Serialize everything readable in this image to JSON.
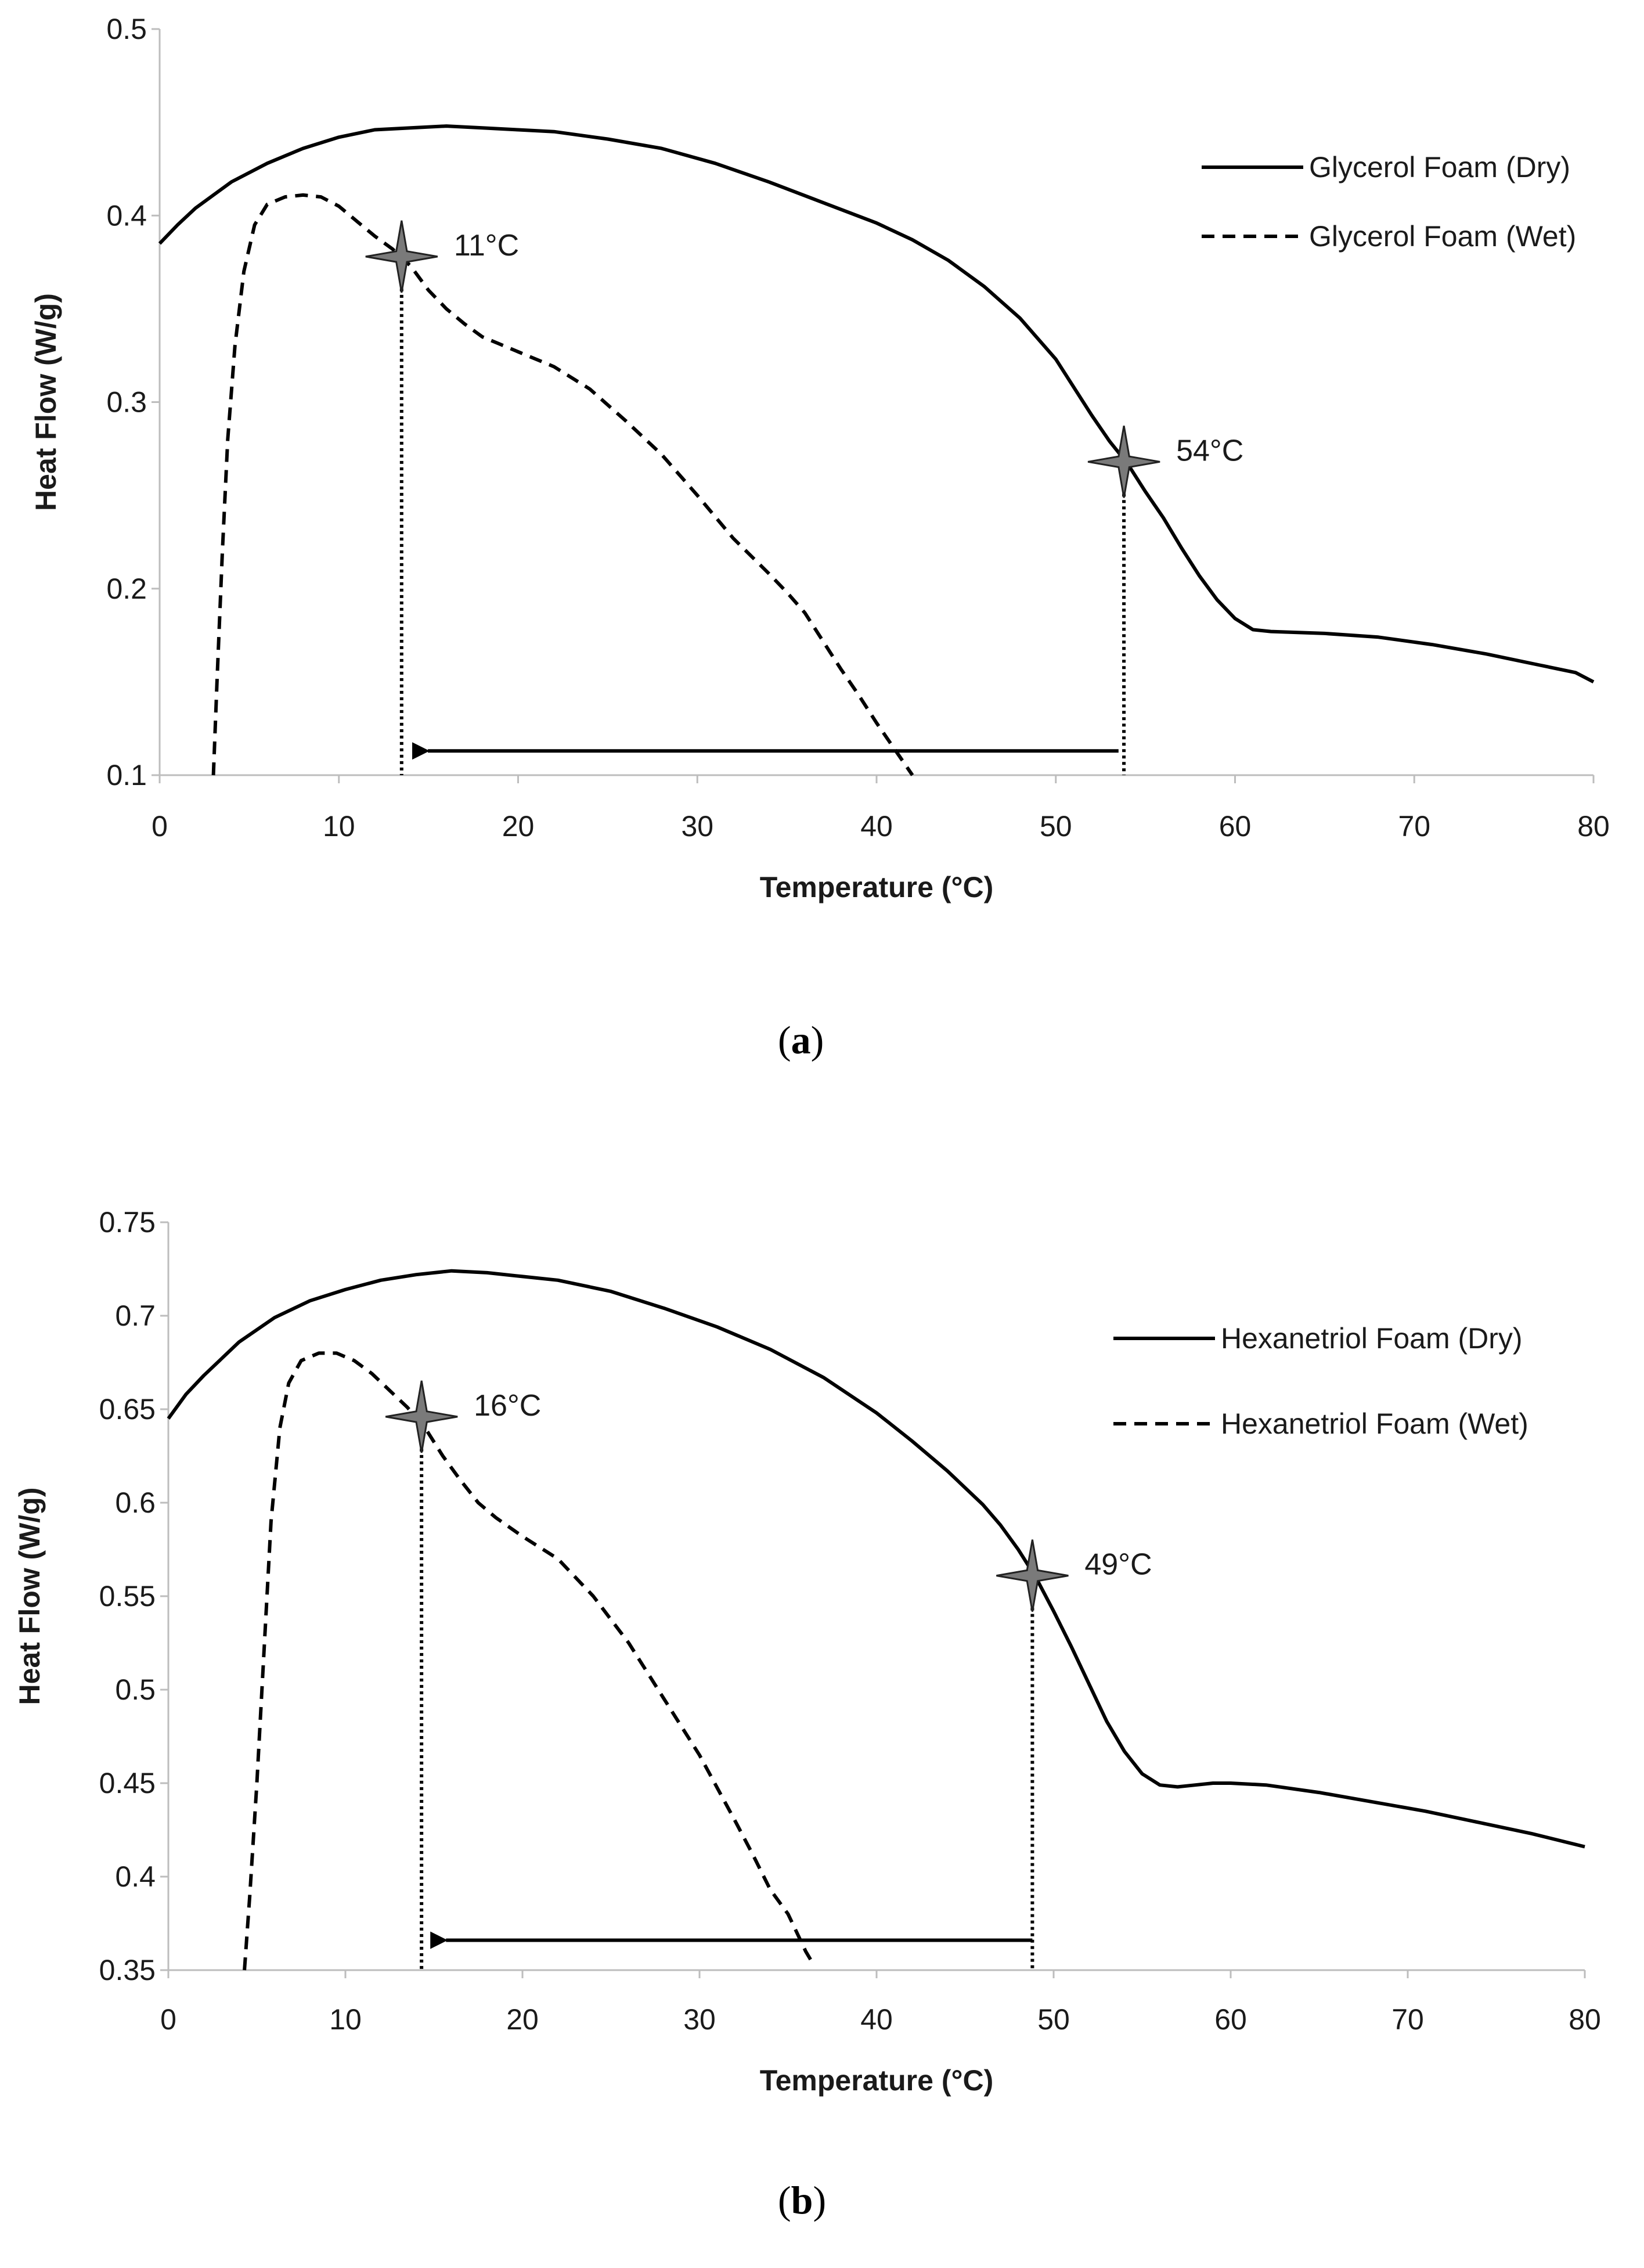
{
  "chart_data": [
    {
      "type": "line",
      "panel_label": "a",
      "xlabel": "Temperature (°C)",
      "ylabel": "Heat Flow (W/g)",
      "xlim": [
        0,
        80
      ],
      "ylim": [
        0.1,
        0.5
      ],
      "xticks": [
        0,
        10,
        20,
        30,
        40,
        50,
        60,
        70,
        80
      ],
      "yticks": [
        0.1,
        0.2,
        0.3,
        0.4,
        0.5
      ],
      "ytick_labels": [
        "0.1",
        "0.2",
        "0.3",
        "0.4",
        "0.5"
      ],
      "legend_position": "top-right",
      "series": [
        {
          "name": "Glycerol Foam (Dry)",
          "style": "solid",
          "x": [
            0,
            1,
            2,
            4,
            6,
            8,
            10,
            12,
            14,
            16,
            18,
            20,
            22,
            25,
            28,
            31,
            34,
            37,
            40,
            42,
            44,
            46,
            48,
            50,
            51,
            52,
            53,
            54,
            55,
            56,
            57,
            58,
            59,
            60,
            61,
            62,
            65,
            68,
            71,
            74,
            77,
            79,
            80
          ],
          "y": [
            0.385,
            0.395,
            0.404,
            0.418,
            0.428,
            0.436,
            0.442,
            0.446,
            0.447,
            0.448,
            0.447,
            0.446,
            0.445,
            0.441,
            0.436,
            0.428,
            0.418,
            0.407,
            0.396,
            0.387,
            0.376,
            0.362,
            0.345,
            0.323,
            0.308,
            0.293,
            0.279,
            0.267,
            0.252,
            0.238,
            0.222,
            0.207,
            0.194,
            0.184,
            0.178,
            0.177,
            0.176,
            0.174,
            0.17,
            0.165,
            0.159,
            0.155,
            0.15
          ]
        },
        {
          "name": "Glycerol Foam (Wet)",
          "style": "dashed",
          "x": [
            3,
            3.2,
            3.5,
            3.8,
            4.2,
            4.7,
            5.3,
            6,
            7,
            8,
            9,
            10,
            11,
            12,
            13,
            14,
            15,
            16,
            17,
            18,
            19,
            20,
            22,
            24,
            26,
            28,
            30,
            32,
            34,
            35,
            36,
            37,
            38,
            39,
            40,
            41,
            42
          ],
          "y": [
            0.1,
            0.15,
            0.22,
            0.28,
            0.33,
            0.37,
            0.395,
            0.406,
            0.41,
            0.411,
            0.41,
            0.405,
            0.397,
            0.389,
            0.382,
            0.373,
            0.36,
            0.35,
            0.342,
            0.335,
            0.331,
            0.327,
            0.319,
            0.307,
            0.29,
            0.272,
            0.25,
            0.227,
            0.208,
            0.198,
            0.187,
            0.172,
            0.157,
            0.143,
            0.128,
            0.114,
            0.1
          ]
        }
      ],
      "markers": [
        {
          "label": "11°C",
          "x": 13.5,
          "y": 0.378
        },
        {
          "label": "54°C",
          "x": 53.8,
          "y": 0.268
        }
      ],
      "arrow": {
        "from_x": 53.5,
        "to_x": 13.8,
        "y": 0.113,
        "direction": "left"
      }
    },
    {
      "type": "line",
      "panel_label": "b",
      "xlabel": "Temperature (°C)",
      "ylabel": "Heat Flow (W/g)",
      "xlim": [
        0,
        80
      ],
      "ylim": [
        0.35,
        0.75
      ],
      "xticks": [
        0,
        10,
        20,
        30,
        40,
        50,
        60,
        70,
        80
      ],
      "yticks": [
        0.35,
        0.4,
        0.45,
        0.5,
        0.55,
        0.6,
        0.65,
        0.7,
        0.75
      ],
      "ytick_labels": [
        "0.35",
        "0.4",
        "0.45",
        "0.5",
        "0.55",
        "0.6",
        "0.65",
        "0.7",
        "0.75"
      ],
      "legend_position": "top-right",
      "series": [
        {
          "name": "Hexanetriol Foam (Dry)",
          "style": "solid",
          "x": [
            0,
            1,
            2,
            4,
            6,
            8,
            10,
            12,
            14,
            16,
            18,
            20,
            22,
            25,
            28,
            31,
            34,
            37,
            40,
            42,
            44,
            46,
            47,
            48,
            49,
            50,
            51,
            52,
            53,
            54,
            55,
            56,
            57,
            58,
            59,
            60,
            62,
            65,
            68,
            71,
            74,
            77,
            80
          ],
          "y": [
            0.645,
            0.658,
            0.668,
            0.686,
            0.699,
            0.708,
            0.714,
            0.719,
            0.722,
            0.724,
            0.723,
            0.721,
            0.719,
            0.713,
            0.704,
            0.694,
            0.682,
            0.667,
            0.648,
            0.633,
            0.617,
            0.599,
            0.588,
            0.575,
            0.56,
            0.542,
            0.523,
            0.503,
            0.483,
            0.467,
            0.455,
            0.449,
            0.448,
            0.449,
            0.45,
            0.45,
            0.449,
            0.445,
            0.44,
            0.435,
            0.429,
            0.423,
            0.416
          ]
        },
        {
          "name": "Hexanetriol Foam (Wet)",
          "style": "dashed",
          "x": [
            4.3,
            4.6,
            5,
            5.4,
            5.8,
            6.3,
            6.8,
            7.5,
            8.5,
            9.5,
            10.5,
            11.5,
            12.5,
            13.5,
            14.5,
            15.5,
            16.5,
            17.5,
            18.5,
            20,
            22,
            24,
            26,
            28,
            30,
            32,
            33,
            34,
            35,
            35.5,
            36,
            36.5
          ],
          "y": [
            0.35,
            0.39,
            0.45,
            0.52,
            0.59,
            0.64,
            0.664,
            0.676,
            0.68,
            0.68,
            0.676,
            0.669,
            0.66,
            0.651,
            0.64,
            0.625,
            0.612,
            0.6,
            0.592,
            0.582,
            0.57,
            0.55,
            0.525,
            0.495,
            0.465,
            0.43,
            0.412,
            0.393,
            0.38,
            0.37,
            0.36,
            0.352
          ]
        }
      ],
      "markers": [
        {
          "label": "16°C",
          "x": 14.3,
          "y": 0.646
        },
        {
          "label": "49°C",
          "x": 48.8,
          "y": 0.561
        }
      ],
      "arrow": {
        "from_x": 48.8,
        "to_x": 14.5,
        "y": 0.366,
        "direction": "left"
      }
    }
  ],
  "captions": {
    "a": "a",
    "b": "b"
  }
}
